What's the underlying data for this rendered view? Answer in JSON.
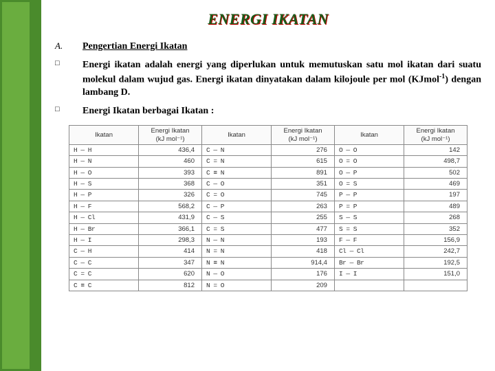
{
  "title": "ENERGI IKATAN",
  "items": {
    "a_marker": "A.",
    "a_text": "Pengertian Energi Ikatan",
    "p1_marker": "□",
    "p1_text": "Energi ikatan adalah energi yang diperlukan untuk memutuskan satu mol ikatan dari suatu molekul dalam wujud gas. Energi ikatan dinyatakan dalam kilojoule per mol (KJmol⁻¹) dengan lambang D.",
    "p2_marker": "□",
    "p2_text": "Energi Ikatan berbagai Ikatan :"
  },
  "table": {
    "headers": {
      "bond": "Ikatan",
      "energy_l1": "Energi Ikatan",
      "energy_l2": "(kJ mol⁻¹)"
    },
    "rows": [
      {
        "b1": "H — H",
        "v1": "436,4",
        "b2": "C — N",
        "v2": "276",
        "b3": "O — O",
        "v3": "142"
      },
      {
        "b1": "H — N",
        "v1": "460",
        "b2": "C = N",
        "v2": "615",
        "b3": "O = O",
        "v3": "498,7"
      },
      {
        "b1": "H — O",
        "v1": "393",
        "b2": "C ≡ N",
        "v2": "891",
        "b3": "O — P",
        "v3": "502"
      },
      {
        "b1": "H — S",
        "v1": "368",
        "b2": "C — O",
        "v2": "351",
        "b3": "O = S",
        "v3": "469"
      },
      {
        "b1": "H — P",
        "v1": "326",
        "b2": "C = O",
        "v2": "745",
        "b3": "P — P",
        "v3": "197"
      },
      {
        "b1": "H — F",
        "v1": "568,2",
        "b2": "C — P",
        "v2": "263",
        "b3": "P = P",
        "v3": "489"
      },
      {
        "b1": "H — Cl",
        "v1": "431,9",
        "b2": "C — S",
        "v2": "255",
        "b3": "S — S",
        "v3": "268"
      },
      {
        "b1": "H — Br",
        "v1": "366,1",
        "b2": "C = S",
        "v2": "477",
        "b3": "S = S",
        "v3": "352"
      },
      {
        "b1": "H — I",
        "v1": "298,3",
        "b2": "N — N",
        "v2": "193",
        "b3": "F — F",
        "v3": "156,9"
      },
      {
        "b1": "C — H",
        "v1": "414",
        "b2": "N = N",
        "v2": "418",
        "b3": "Cl — Cl",
        "v3": "242,7"
      },
      {
        "b1": "C — C",
        "v1": "347",
        "b2": "N ≡ N",
        "v2": "914,4",
        "b3": "Br — Br",
        "v3": "192,5"
      },
      {
        "b1": "C = C",
        "v1": "620",
        "b2": "N — O",
        "v2": "176",
        "b3": "I — I",
        "v3": "151,0"
      },
      {
        "b1": "C ≡ C",
        "v1": "812",
        "b2": "N = O",
        "v2": "209",
        "b3": "",
        "v3": ""
      }
    ]
  }
}
